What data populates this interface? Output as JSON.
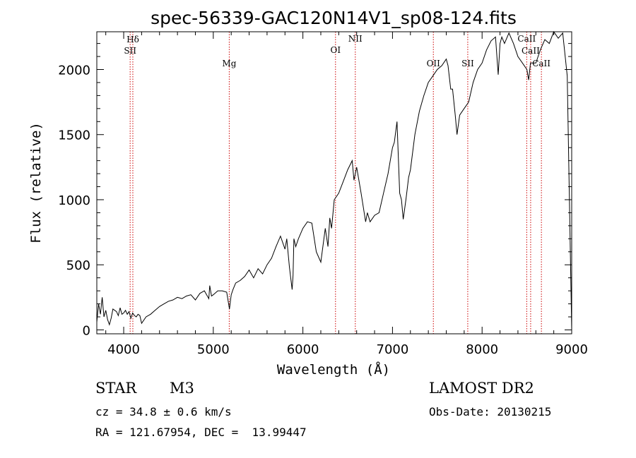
{
  "chart_data": {
    "type": "line",
    "title": "spec-56339-GAC120N14V1_sp08-124.fits",
    "xlabel": "Wavelength (Å)",
    "ylabel": "Flux (relative)",
    "xlim": [
      3700,
      9000
    ],
    "ylim": [
      -30,
      2290
    ],
    "xticks": [
      4000,
      5000,
      6000,
      7000,
      8000,
      9000
    ],
    "yticks": [
      0,
      500,
      1000,
      1500,
      2000
    ],
    "xtick_labels": [
      "4000",
      "5000",
      "6000",
      "7000",
      "8000",
      "9000"
    ],
    "ytick_labels": [
      "0",
      "500",
      "1000",
      "1500",
      "2000"
    ],
    "series": [
      {
        "x": [
          3700,
          3720,
          3740,
          3760,
          3780,
          3800,
          3820,
          3840,
          3860,
          3880,
          3900,
          3920,
          3940,
          3960,
          3980,
          4000,
          4020,
          4040,
          4060,
          4080,
          4100,
          4120,
          4140,
          4160,
          4180,
          4200,
          4250,
          4300,
          4350,
          4400,
          4450,
          4500,
          4550,
          4600,
          4650,
          4700,
          4750,
          4800,
          4850,
          4900,
          4950,
          4960,
          4980,
          5000,
          5050,
          5100,
          5150,
          5180,
          5200,
          5220,
          5250,
          5300,
          5350,
          5400,
          5450,
          5500,
          5550,
          5600,
          5650,
          5700,
          5750,
          5800,
          5820,
          5850,
          5880,
          5890,
          5900,
          5920,
          5950,
          6000,
          6050,
          6100,
          6150,
          6200,
          6250,
          6280,
          6300,
          6320,
          6350,
          6400,
          6450,
          6500,
          6550,
          6570,
          6600,
          6650,
          6700,
          6720,
          6750,
          6800,
          6850,
          6900,
          6950,
          7000,
          7020,
          7050,
          7080,
          7100,
          7120,
          7150,
          7180,
          7200,
          7250,
          7300,
          7350,
          7400,
          7450,
          7500,
          7550,
          7600,
          7620,
          7650,
          7670,
          7700,
          7720,
          7750,
          7800,
          7850,
          7900,
          7950,
          8000,
          8050,
          8100,
          8150,
          8180,
          8200,
          8220,
          8250,
          8300,
          8350,
          8400,
          8450,
          8500,
          8520,
          8540,
          8560,
          8600,
          8650,
          8700,
          8750,
          8800,
          8850,
          8900,
          8950,
          9000
        ],
        "y": [
          60,
          200,
          120,
          250,
          100,
          150,
          80,
          40,
          90,
          160,
          150,
          140,
          110,
          170,
          120,
          130,
          150,
          120,
          140,
          90,
          130,
          110,
          100,
          120,
          110,
          50,
          100,
          120,
          150,
          180,
          200,
          220,
          230,
          250,
          240,
          260,
          270,
          230,
          280,
          300,
          240,
          340,
          260,
          270,
          300,
          300,
          290,
          160,
          270,
          310,
          360,
          380,
          410,
          460,
          400,
          470,
          430,
          500,
          550,
          640,
          720,
          620,
          700,
          480,
          310,
          420,
          700,
          640,
          700,
          780,
          830,
          820,
          600,
          520,
          780,
          640,
          860,
          780,
          1000,
          1050,
          1140,
          1230,
          1300,
          1150,
          1250,
          1050,
          830,
          900,
          830,
          880,
          900,
          1050,
          1200,
          1400,
          1440,
          1600,
          1050,
          1000,
          850,
          1000,
          1170,
          1230,
          1500,
          1680,
          1800,
          1900,
          1950,
          2000,
          2030,
          2080,
          2030,
          1850,
          1850,
          1650,
          1500,
          1650,
          1700,
          1750,
          1900,
          2000,
          2050,
          2150,
          2220,
          2250,
          1960,
          2200,
          2250,
          2200,
          2280,
          2200,
          2100,
          2050,
          2000,
          1920,
          2050,
          2050,
          2050,
          2150,
          2230,
          2200,
          2290,
          2240,
          2280,
          1950,
          0
        ]
      }
    ],
    "line_markers": [
      {
        "label": "Hδ",
        "x": 4102
      },
      {
        "label": "SII",
        "x": 4072
      },
      {
        "label": "Mg",
        "x": 5178
      },
      {
        "label": "OI",
        "x": 6364
      },
      {
        "label": "NII",
        "x": 6585
      },
      {
        "label": "OII",
        "x": 7456
      },
      {
        "label": "SII",
        "x": 7840
      },
      {
        "label": "CaII",
        "x": 8498
      },
      {
        "label": "CaII",
        "x": 8542
      },
      {
        "label": "CaII",
        "x": 8662
      }
    ],
    "line_color": "#000000",
    "marker_color": "#cc0000",
    "grid": false
  },
  "info": {
    "object_class": "STAR",
    "subclass": "M3",
    "survey": "LAMOST DR2",
    "redshift": "cz = 34.8 ± 0.6 km/s",
    "obs_date": "Obs-Date: 20130215",
    "coords": "RA = 121.67954, DEC =  13.99447"
  }
}
